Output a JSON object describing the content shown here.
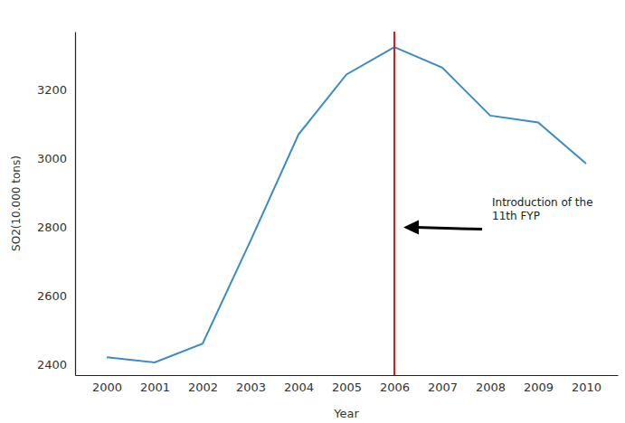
{
  "chart_data": {
    "type": "line",
    "x_label": "Year",
    "y_label": "SO2(10.000 tons)",
    "x": [
      2000,
      2001,
      2002,
      2003,
      2004,
      2005,
      2006,
      2007,
      2008,
      2009,
      2010
    ],
    "values": [
      2420,
      2405,
      2460,
      2760,
      3070,
      3245,
      3325,
      3265,
      3125,
      3105,
      2985
    ],
    "color": "#3a8cc4",
    "xlim": [
      1999.34,
      2010.66
    ],
    "xticks": [
      2000,
      2001,
      2002,
      2003,
      2004,
      2005,
      2006,
      2007,
      2008,
      2009,
      2010
    ],
    "ylim": [
      2368,
      3370
    ],
    "yticks": [
      2400,
      2600,
      2800,
      3000,
      3200
    ],
    "grid": false,
    "annotations": [
      {
        "text": [
          "Introduction of the",
          "11th FYP"
        ],
        "x": 2006
      }
    ]
  }
}
